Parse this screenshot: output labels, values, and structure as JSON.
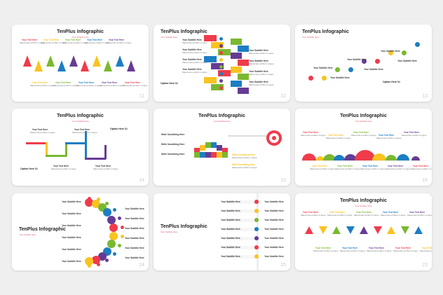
{
  "colors": {
    "red": "#ef3b4b",
    "yellow": "#f9c320",
    "green": "#7ab830",
    "blue": "#1d7ec3",
    "purple": "#653c95"
  },
  "slides": [
    {
      "kind": "pyramids",
      "title": "TenPlus Infographic",
      "subtitle": "Your Subtitle Here",
      "number": "11",
      "label_title": "Your Text Here",
      "label_body": "Maecenas porttitor congue"
    },
    {
      "kind": "blocks",
      "title": "TenPlus Infographic",
      "subtitle": "Your Subtitle Here",
      "number": "12",
      "label_title": "Your Subtitle Here",
      "label_body": "Maecenas porttitor congue",
      "option": "Option Here 01"
    },
    {
      "kind": "wave",
      "title": "TenPlus Infographic",
      "subtitle": "Your Subtitle Here",
      "number": "13",
      "label_title": "Your Subtitle Here",
      "label_body": "Maecenas porttitor congue",
      "option": "Option Here 01"
    },
    {
      "kind": "pipes",
      "title": "TenPlus Infographic",
      "subtitle": "Your Subtitle Here",
      "number": "14",
      "label_title": "Your Text Here",
      "label_body": "Maecenas porttitor congue",
      "option": "Option Here 01"
    },
    {
      "kind": "ushape",
      "title": "TenPlus Infographic",
      "subtitle": "Your Subtitle Here",
      "number": "15",
      "label_title": "Write Something Here",
      "label_body": "Maecenas porttitor congue"
    },
    {
      "kind": "circles",
      "title": "TenPlus Infographic",
      "subtitle": "Your Subtitle Here",
      "number": "16",
      "label_title": "Your Text Here",
      "label_body": "Maecenas porttitor congue"
    },
    {
      "kind": "ring",
      "title": "TenPlus Infographic",
      "subtitle": "Your Subtitle Here",
      "number": "24",
      "label_title": "Your Subtitle Here",
      "label_body": "Maecenas porttitor congue"
    },
    {
      "kind": "list",
      "title": "TenPlus Infographic",
      "subtitle": "Your Subtitle Here",
      "number": "25",
      "label_title": "Your Subtitle Here",
      "label_body": "Maecenas porttitor congue"
    },
    {
      "kind": "triangles",
      "title": "TenPlus Infographic",
      "subtitle": "Your Subtitle Here",
      "number": "23",
      "label_title": "Your Text Here",
      "label_body": "Maecenas porttitor congue"
    }
  ]
}
